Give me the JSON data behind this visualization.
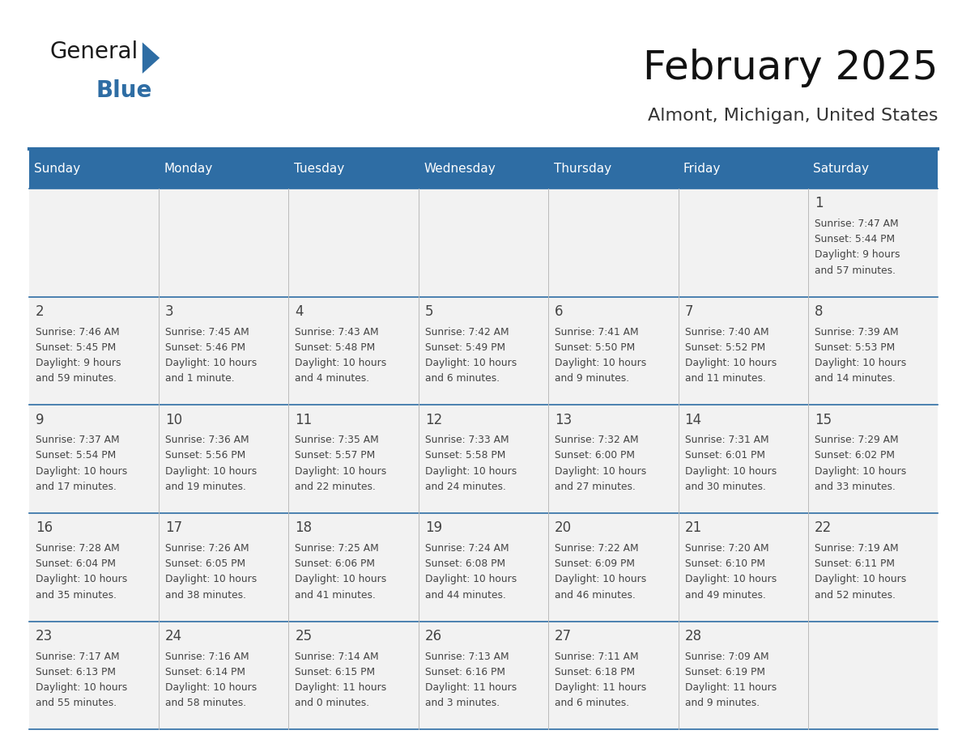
{
  "title": "February 2025",
  "subtitle": "Almont, Michigan, United States",
  "days_of_week": [
    "Sunday",
    "Monday",
    "Tuesday",
    "Wednesday",
    "Thursday",
    "Friday",
    "Saturday"
  ],
  "header_bg": "#2E6DA4",
  "header_text": "#FFFFFF",
  "cell_bg": "#F2F2F2",
  "text_color": "#444444",
  "line_color": "#2E6DA4",
  "calendar_data": [
    [
      null,
      null,
      null,
      null,
      null,
      null,
      {
        "day": "1",
        "sunrise": "7:47 AM",
        "sunset": "5:44 PM",
        "daylight_line1": "Daylight: 9 hours",
        "daylight_line2": "and 57 minutes."
      }
    ],
    [
      {
        "day": "2",
        "sunrise": "7:46 AM",
        "sunset": "5:45 PM",
        "daylight_line1": "Daylight: 9 hours",
        "daylight_line2": "and 59 minutes."
      },
      {
        "day": "3",
        "sunrise": "7:45 AM",
        "sunset": "5:46 PM",
        "daylight_line1": "Daylight: 10 hours",
        "daylight_line2": "and 1 minute."
      },
      {
        "day": "4",
        "sunrise": "7:43 AM",
        "sunset": "5:48 PM",
        "daylight_line1": "Daylight: 10 hours",
        "daylight_line2": "and 4 minutes."
      },
      {
        "day": "5",
        "sunrise": "7:42 AM",
        "sunset": "5:49 PM",
        "daylight_line1": "Daylight: 10 hours",
        "daylight_line2": "and 6 minutes."
      },
      {
        "day": "6",
        "sunrise": "7:41 AM",
        "sunset": "5:50 PM",
        "daylight_line1": "Daylight: 10 hours",
        "daylight_line2": "and 9 minutes."
      },
      {
        "day": "7",
        "sunrise": "7:40 AM",
        "sunset": "5:52 PM",
        "daylight_line1": "Daylight: 10 hours",
        "daylight_line2": "and 11 minutes."
      },
      {
        "day": "8",
        "sunrise": "7:39 AM",
        "sunset": "5:53 PM",
        "daylight_line1": "Daylight: 10 hours",
        "daylight_line2": "and 14 minutes."
      }
    ],
    [
      {
        "day": "9",
        "sunrise": "7:37 AM",
        "sunset": "5:54 PM",
        "daylight_line1": "Daylight: 10 hours",
        "daylight_line2": "and 17 minutes."
      },
      {
        "day": "10",
        "sunrise": "7:36 AM",
        "sunset": "5:56 PM",
        "daylight_line1": "Daylight: 10 hours",
        "daylight_line2": "and 19 minutes."
      },
      {
        "day": "11",
        "sunrise": "7:35 AM",
        "sunset": "5:57 PM",
        "daylight_line1": "Daylight: 10 hours",
        "daylight_line2": "and 22 minutes."
      },
      {
        "day": "12",
        "sunrise": "7:33 AM",
        "sunset": "5:58 PM",
        "daylight_line1": "Daylight: 10 hours",
        "daylight_line2": "and 24 minutes."
      },
      {
        "day": "13",
        "sunrise": "7:32 AM",
        "sunset": "6:00 PM",
        "daylight_line1": "Daylight: 10 hours",
        "daylight_line2": "and 27 minutes."
      },
      {
        "day": "14",
        "sunrise": "7:31 AM",
        "sunset": "6:01 PM",
        "daylight_line1": "Daylight: 10 hours",
        "daylight_line2": "and 30 minutes."
      },
      {
        "day": "15",
        "sunrise": "7:29 AM",
        "sunset": "6:02 PM",
        "daylight_line1": "Daylight: 10 hours",
        "daylight_line2": "and 33 minutes."
      }
    ],
    [
      {
        "day": "16",
        "sunrise": "7:28 AM",
        "sunset": "6:04 PM",
        "daylight_line1": "Daylight: 10 hours",
        "daylight_line2": "and 35 minutes."
      },
      {
        "day": "17",
        "sunrise": "7:26 AM",
        "sunset": "6:05 PM",
        "daylight_line1": "Daylight: 10 hours",
        "daylight_line2": "and 38 minutes."
      },
      {
        "day": "18",
        "sunrise": "7:25 AM",
        "sunset": "6:06 PM",
        "daylight_line1": "Daylight: 10 hours",
        "daylight_line2": "and 41 minutes."
      },
      {
        "day": "19",
        "sunrise": "7:24 AM",
        "sunset": "6:08 PM",
        "daylight_line1": "Daylight: 10 hours",
        "daylight_line2": "and 44 minutes."
      },
      {
        "day": "20",
        "sunrise": "7:22 AM",
        "sunset": "6:09 PM",
        "daylight_line1": "Daylight: 10 hours",
        "daylight_line2": "and 46 minutes."
      },
      {
        "day": "21",
        "sunrise": "7:20 AM",
        "sunset": "6:10 PM",
        "daylight_line1": "Daylight: 10 hours",
        "daylight_line2": "and 49 minutes."
      },
      {
        "day": "22",
        "sunrise": "7:19 AM",
        "sunset": "6:11 PM",
        "daylight_line1": "Daylight: 10 hours",
        "daylight_line2": "and 52 minutes."
      }
    ],
    [
      {
        "day": "23",
        "sunrise": "7:17 AM",
        "sunset": "6:13 PM",
        "daylight_line1": "Daylight: 10 hours",
        "daylight_line2": "and 55 minutes."
      },
      {
        "day": "24",
        "sunrise": "7:16 AM",
        "sunset": "6:14 PM",
        "daylight_line1": "Daylight: 10 hours",
        "daylight_line2": "and 58 minutes."
      },
      {
        "day": "25",
        "sunrise": "7:14 AM",
        "sunset": "6:15 PM",
        "daylight_line1": "Daylight: 11 hours",
        "daylight_line2": "and 0 minutes."
      },
      {
        "day": "26",
        "sunrise": "7:13 AM",
        "sunset": "6:16 PM",
        "daylight_line1": "Daylight: 11 hours",
        "daylight_line2": "and 3 minutes."
      },
      {
        "day": "27",
        "sunrise": "7:11 AM",
        "sunset": "6:18 PM",
        "daylight_line1": "Daylight: 11 hours",
        "daylight_line2": "and 6 minutes."
      },
      {
        "day": "28",
        "sunrise": "7:09 AM",
        "sunset": "6:19 PM",
        "daylight_line1": "Daylight: 11 hours",
        "daylight_line2": "and 9 minutes."
      },
      null
    ]
  ],
  "fig_width": 11.88,
  "fig_height": 9.18
}
